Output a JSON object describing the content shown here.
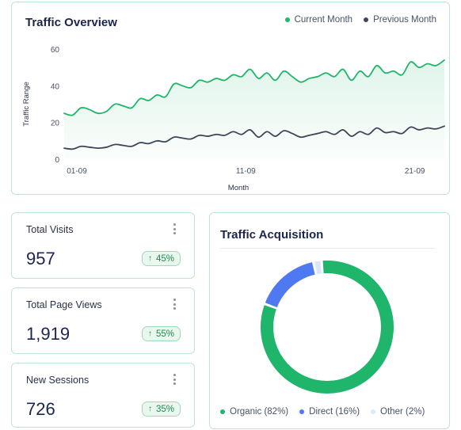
{
  "overview": {
    "title": "Traffic Overview",
    "legend": [
      {
        "label": "Current Month",
        "color": "#1fb56a"
      },
      {
        "label": "Previous Month",
        "color": "#3d4558"
      }
    ]
  },
  "chart_data": {
    "type": "line",
    "ylabel": "Traffic Range",
    "xlabel": "Month",
    "ylim": [
      0,
      60
    ],
    "yticks": [
      "0",
      "20",
      "40",
      "60"
    ],
    "xticks": [
      {
        "label": "01-09",
        "x": 3
      },
      {
        "label": "11-09",
        "x": 43
      },
      {
        "label": "21-09",
        "x": 83
      }
    ],
    "grid": false,
    "legend_position": "top-right",
    "series": [
      {
        "name": "Current Month",
        "color": "#1fb56a",
        "x": [
          0,
          2,
          4,
          6,
          8,
          10,
          12,
          14,
          16,
          18,
          20,
          22,
          24,
          26,
          28,
          30,
          32,
          34,
          36,
          38,
          40,
          42,
          44,
          46,
          48,
          50,
          52,
          54,
          56,
          58,
          60,
          62,
          64,
          66,
          68,
          70,
          72,
          74,
          76,
          78,
          80,
          82,
          84,
          86,
          88,
          90
        ],
        "y": [
          25,
          24,
          28,
          27,
          25,
          26,
          30,
          29,
          28,
          33,
          32,
          35,
          34,
          41,
          40,
          39,
          43,
          42,
          44,
          43,
          46,
          45,
          49,
          44,
          47,
          43,
          48,
          45,
          42,
          44,
          45,
          47,
          45,
          49,
          43,
          48,
          45,
          51,
          47,
          48,
          46,
          53,
          50,
          52,
          51,
          54
        ]
      },
      {
        "name": "Previous Month",
        "color": "#3d4558",
        "x": [
          0,
          2,
          4,
          6,
          8,
          10,
          12,
          14,
          16,
          18,
          20,
          22,
          24,
          26,
          28,
          30,
          32,
          34,
          36,
          38,
          40,
          42,
          44,
          46,
          48,
          50,
          52,
          54,
          56,
          58,
          60,
          62,
          64,
          66,
          68,
          70,
          72,
          74,
          76,
          78,
          80,
          82,
          84,
          86,
          88,
          90
        ],
        "y": [
          6,
          5.5,
          7,
          6.5,
          6,
          6.5,
          8,
          7.5,
          7,
          9,
          8.5,
          10,
          9.5,
          12,
          11.5,
          11,
          13,
          12.5,
          13.5,
          13,
          15,
          13.5,
          16,
          12,
          15,
          12.5,
          15.5,
          14,
          12,
          13,
          14,
          15,
          13.5,
          16,
          12.5,
          15,
          13.5,
          17,
          14.5,
          15,
          14,
          17.5,
          16,
          17,
          16.5,
          18
        ]
      }
    ]
  },
  "stats": [
    {
      "id": "visits",
      "label": "Total Visits",
      "value": "957",
      "change": "45%"
    },
    {
      "id": "pageviews",
      "label": "Total Page Views",
      "value": "1,919",
      "change": "55%"
    },
    {
      "id": "sessions",
      "label": "New Sessions",
      "value": "726",
      "change": "35%"
    }
  ],
  "acquisition": {
    "title": "Traffic Acquisition",
    "chart_data": {
      "type": "pie",
      "donut": true,
      "segments": [
        {
          "label": "Organic (82%)",
          "value": 82,
          "color": "#1fb56a"
        },
        {
          "label": "Direct (16%)",
          "value": 16,
          "color": "#4e79f0"
        },
        {
          "label": "Other (2%)",
          "value": 2,
          "color": "#dce6fb"
        }
      ]
    }
  }
}
